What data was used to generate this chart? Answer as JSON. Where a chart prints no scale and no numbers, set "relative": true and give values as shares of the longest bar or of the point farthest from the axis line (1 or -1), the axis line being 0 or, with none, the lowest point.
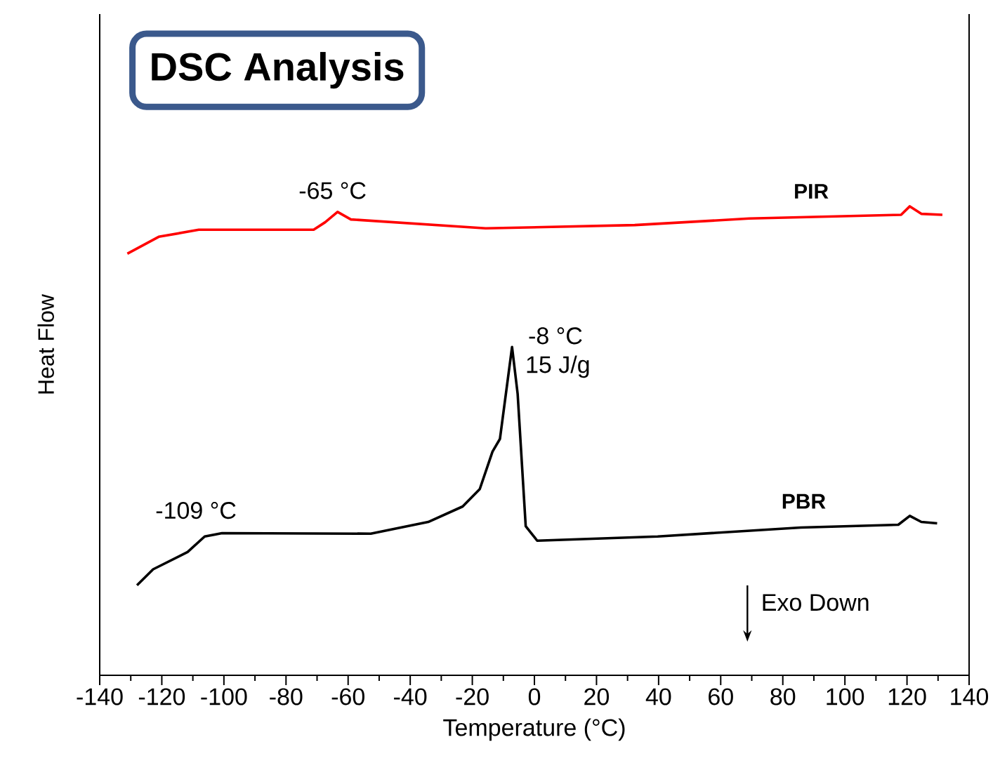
{
  "chart_data": {
    "type": "line",
    "title": "DSC Analysis",
    "xlabel": "Temperature (°C)",
    "ylabel": "Heat Flow",
    "relative": true,
    "tick_labels": "x",
    "xlim": [
      -140,
      140
    ],
    "xticks": [
      -140,
      -120,
      -100,
      -80,
      -60,
      -40,
      -20,
      0,
      20,
      40,
      60,
      80,
      100,
      120,
      140
    ],
    "series": [
      {
        "name": "PIR",
        "color": "#ff0000",
        "x": [
          -131.1,
          -121.0,
          -108.1,
          -71.1,
          -67.4,
          -63.4,
          -59.1,
          -15.7,
          32.3,
          69.2,
          118.1,
          120.9,
          124.6,
          131.4
        ],
        "values": [
          0.899,
          0.935,
          0.95,
          0.95,
          0.966,
          0.988,
          0.972,
          0.953,
          0.96,
          0.974,
          0.982,
          1.0,
          0.984,
          0.982
        ]
      },
      {
        "name": "PBR",
        "color": "#000000",
        "x": [
          -128.0,
          -122.8,
          -111.7,
          -106.2,
          -100.6,
          -52.7,
          -34.2,
          -23.1,
          -17.6,
          -13.5,
          -11.1,
          -7.2,
          -5.4,
          -2.8,
          0.9,
          39.7,
          85.8,
          117.2,
          120.9,
          124.6,
          129.7
        ],
        "values": [
          0.192,
          0.226,
          0.263,
          0.296,
          0.303,
          0.302,
          0.327,
          0.36,
          0.397,
          0.477,
          0.504,
          0.7,
          0.6,
          0.318,
          0.287,
          0.296,
          0.315,
          0.321,
          0.34,
          0.327,
          0.324
        ]
      }
    ],
    "annotations": [
      {
        "text": "-65 °C",
        "x": -65,
        "y": 0.988
      },
      {
        "text": "-109 °C",
        "x": -109,
        "y": 0.3
      },
      {
        "text": "-8 °C",
        "x": -8,
        "y": 0.7
      },
      {
        "text": "15 J/g",
        "x": -8,
        "y": 0.7
      },
      "Exo Down"
    ]
  }
}
